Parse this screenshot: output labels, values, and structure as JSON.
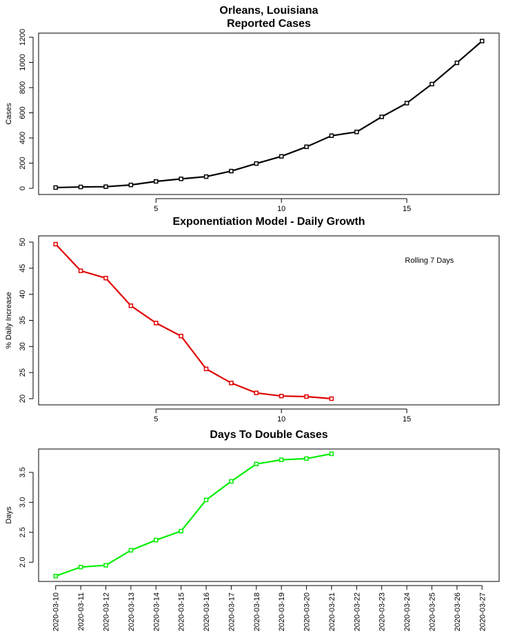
{
  "chart_data": [
    {
      "type": "line",
      "title": [
        "Orleans, Louisiana",
        "Reported Cases"
      ],
      "y_label": "Cases",
      "x": [
        1,
        2,
        3,
        4,
        5,
        6,
        7,
        8,
        9,
        10,
        11,
        12,
        13,
        14,
        15,
        16,
        17,
        18
      ],
      "series": [
        {
          "color": "#000000",
          "values": [
            6,
            11,
            13,
            27,
            55,
            75,
            93,
            137,
            197,
            254,
            330,
            418,
            448,
            568,
            677,
            828,
            997,
            1170
          ]
        }
      ],
      "xlim": [
        0.32,
        18.68
      ],
      "xticks": [
        5,
        10,
        15
      ],
      "ylim": [
        -49,
        1233
      ],
      "yticks": [
        0,
        200,
        400,
        600,
        800,
        1000,
        1200
      ]
    },
    {
      "type": "line",
      "title": [
        "Exponentiation Model - Daily Growth"
      ],
      "y_label": "% Daily Increase",
      "x": [
        1,
        2,
        3,
        4,
        5,
        6,
        7,
        8,
        9,
        10,
        11,
        12
      ],
      "series": [
        {
          "color": "#e00000",
          "values": [
            49.6,
            44.5,
            43.1,
            37.8,
            34.5,
            32.0,
            25.7,
            23.0,
            21.1,
            20.5,
            20.4,
            20.0
          ]
        }
      ],
      "annotation": {
        "text": "Rolling 7 Days",
        "x": 15.9,
        "y": 46.4
      },
      "xlim": [
        0.32,
        18.68
      ],
      "xticks": [
        5,
        10,
        15
      ],
      "ylim": [
        18.81,
        51.19
      ],
      "yticks": [
        20,
        25,
        30,
        35,
        40,
        45,
        50
      ]
    },
    {
      "type": "line",
      "title": [
        "Days To Double Cases"
      ],
      "y_label": "Days",
      "categories": [
        "2020-03-10",
        "2020-03-11",
        "2020-03-12",
        "2020-03-13",
        "2020-03-14",
        "2020-03-15",
        "2020-03-16",
        "2020-03-17",
        "2020-03-18",
        "2020-03-19",
        "2020-03-20",
        "2020-03-21",
        "2020-03-22",
        "2020-03-23",
        "2020-03-24",
        "2020-03-25",
        "2020-03-26",
        "2020-03-27"
      ],
      "series": [
        {
          "color": "#00ee00",
          "values": [
            1.77,
            1.92,
            1.95,
            2.2,
            2.37,
            2.52,
            3.04,
            3.35,
            3.64,
            3.71,
            3.73,
            3.81,
            null,
            null,
            null,
            null,
            null,
            null
          ]
        }
      ],
      "ylim": [
        1.68,
        3.89
      ],
      "yticks": [
        {
          "value": 2,
          "label": "2.0"
        },
        {
          "value": 2.5,
          "label": "2.5"
        },
        {
          "value": 3,
          "label": "3.0"
        },
        {
          "value": 3.5,
          "label": "3.5"
        }
      ]
    }
  ]
}
